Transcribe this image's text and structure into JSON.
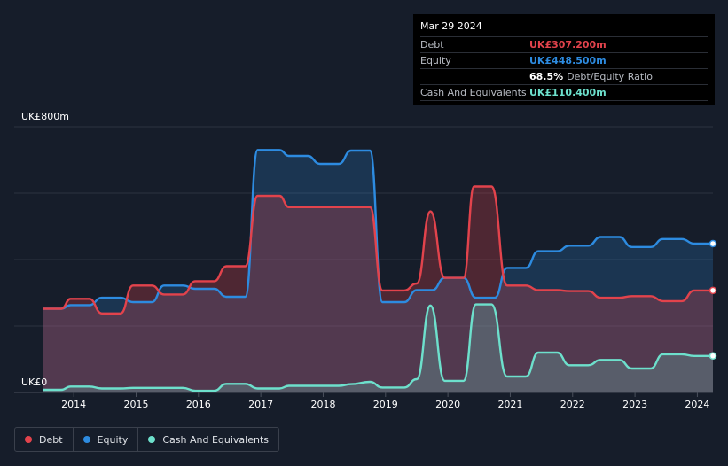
{
  "tooltip": {
    "date": "Mar 29 2024",
    "debt_label": "Debt",
    "debt_value": "UK£307.200m",
    "equity_label": "Equity",
    "equity_value": "UK£448.500m",
    "ratio_value": "68.5%",
    "ratio_label": "Debt/Equity Ratio",
    "cash_label": "Cash And Equivalents",
    "cash_value": "UK£110.400m"
  },
  "legend": {
    "debt": "Debt",
    "equity": "Equity",
    "cash": "Cash And Equivalents"
  },
  "colors": {
    "debt": "#e2434c",
    "equity": "#2d8be0",
    "cash": "#6de0cc",
    "background": "#161d2a"
  },
  "chart_data": {
    "type": "area",
    "title": "",
    "y_top_label": "UK£800m",
    "y_bottom_label": "UK£0",
    "ylim": [
      0,
      800
    ],
    "xlim": [
      2013.5,
      2024.25
    ],
    "x_tick_labels": [
      "2014",
      "2015",
      "2016",
      "2017",
      "2018",
      "2019",
      "2020",
      "2021",
      "2022",
      "2023",
      "2024"
    ],
    "x_ticks": [
      2014,
      2015,
      2016,
      2017,
      2018,
      2019,
      2020,
      2021,
      2022,
      2023,
      2024
    ],
    "series": [
      {
        "name": "Debt",
        "points": [
          [
            2013.5,
            252
          ],
          [
            2013.8,
            252
          ],
          [
            2013.95,
            282
          ],
          [
            2014.25,
            282
          ],
          [
            2014.45,
            238
          ],
          [
            2014.75,
            238
          ],
          [
            2014.95,
            322
          ],
          [
            2015.25,
            322
          ],
          [
            2015.45,
            295
          ],
          [
            2015.75,
            295
          ],
          [
            2015.95,
            335
          ],
          [
            2016.25,
            335
          ],
          [
            2016.45,
            380
          ],
          [
            2016.75,
            380
          ],
          [
            2016.95,
            592
          ],
          [
            2017.3,
            592
          ],
          [
            2017.45,
            558
          ],
          [
            2018.75,
            558
          ],
          [
            2018.95,
            307
          ],
          [
            2019.3,
            307
          ],
          [
            2019.5,
            328
          ],
          [
            2019.72,
            545
          ],
          [
            2019.95,
            345
          ],
          [
            2020.25,
            345
          ],
          [
            2020.42,
            620
          ],
          [
            2020.7,
            620
          ],
          [
            2020.95,
            322
          ],
          [
            2021.25,
            322
          ],
          [
            2021.45,
            308
          ],
          [
            2021.75,
            308
          ],
          [
            2021.95,
            305
          ],
          [
            2022.25,
            305
          ],
          [
            2022.45,
            285
          ],
          [
            2022.75,
            285
          ],
          [
            2022.95,
            290
          ],
          [
            2023.25,
            290
          ],
          [
            2023.45,
            275
          ],
          [
            2023.75,
            275
          ],
          [
            2023.95,
            307
          ],
          [
            2024.25,
            307
          ]
        ]
      },
      {
        "name": "Equity",
        "points": [
          [
            2013.5,
            252
          ],
          [
            2013.8,
            252
          ],
          [
            2013.95,
            263
          ],
          [
            2014.25,
            263
          ],
          [
            2014.45,
            285
          ],
          [
            2014.75,
            285
          ],
          [
            2014.95,
            272
          ],
          [
            2015.25,
            272
          ],
          [
            2015.45,
            322
          ],
          [
            2015.75,
            322
          ],
          [
            2015.95,
            312
          ],
          [
            2016.25,
            312
          ],
          [
            2016.45,
            288
          ],
          [
            2016.75,
            288
          ],
          [
            2016.95,
            730
          ],
          [
            2017.3,
            730
          ],
          [
            2017.45,
            712
          ],
          [
            2017.75,
            712
          ],
          [
            2017.95,
            688
          ],
          [
            2018.25,
            688
          ],
          [
            2018.45,
            728
          ],
          [
            2018.75,
            728
          ],
          [
            2018.95,
            272
          ],
          [
            2019.3,
            272
          ],
          [
            2019.5,
            308
          ],
          [
            2019.75,
            308
          ],
          [
            2019.95,
            345
          ],
          [
            2020.25,
            345
          ],
          [
            2020.45,
            285
          ],
          [
            2020.75,
            285
          ],
          [
            2020.95,
            375
          ],
          [
            2021.25,
            375
          ],
          [
            2021.45,
            425
          ],
          [
            2021.75,
            425
          ],
          [
            2021.95,
            442
          ],
          [
            2022.25,
            442
          ],
          [
            2022.45,
            468
          ],
          [
            2022.75,
            468
          ],
          [
            2022.95,
            438
          ],
          [
            2023.25,
            438
          ],
          [
            2023.45,
            462
          ],
          [
            2023.75,
            462
          ],
          [
            2023.95,
            448
          ],
          [
            2024.25,
            448
          ]
        ]
      },
      {
        "name": "Cash And Equivalents",
        "points": [
          [
            2013.5,
            8
          ],
          [
            2013.8,
            8
          ],
          [
            2013.95,
            18
          ],
          [
            2014.25,
            18
          ],
          [
            2014.45,
            12
          ],
          [
            2014.75,
            12
          ],
          [
            2014.95,
            14
          ],
          [
            2015.75,
            14
          ],
          [
            2015.95,
            5
          ],
          [
            2016.25,
            5
          ],
          [
            2016.45,
            26
          ],
          [
            2016.75,
            26
          ],
          [
            2016.95,
            12
          ],
          [
            2017.3,
            12
          ],
          [
            2017.45,
            20
          ],
          [
            2018.25,
            20
          ],
          [
            2018.45,
            25
          ],
          [
            2018.75,
            32
          ],
          [
            2018.95,
            15
          ],
          [
            2019.3,
            15
          ],
          [
            2019.5,
            40
          ],
          [
            2019.72,
            262
          ],
          [
            2019.95,
            35
          ],
          [
            2020.25,
            35
          ],
          [
            2020.45,
            265
          ],
          [
            2020.7,
            265
          ],
          [
            2020.95,
            48
          ],
          [
            2021.25,
            48
          ],
          [
            2021.45,
            120
          ],
          [
            2021.75,
            120
          ],
          [
            2021.95,
            82
          ],
          [
            2022.25,
            82
          ],
          [
            2022.45,
            98
          ],
          [
            2022.75,
            98
          ],
          [
            2022.95,
            72
          ],
          [
            2023.25,
            72
          ],
          [
            2023.45,
            115
          ],
          [
            2023.75,
            115
          ],
          [
            2023.95,
            110
          ],
          [
            2024.25,
            110
          ]
        ]
      }
    ]
  }
}
